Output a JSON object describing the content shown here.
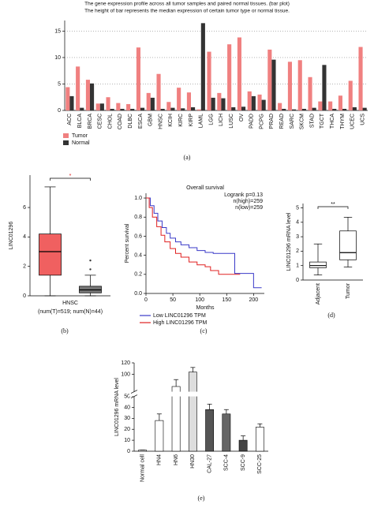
{
  "chart_data": [
    {
      "type": "bar",
      "title": "The gene expression profile across all tumor samples and paired normal tissues. (bar plot)",
      "subtitle": "The height of bar represents the median expression of certain tumor type or normal tissue.",
      "categories": [
        "ACC",
        "BLCA",
        "BRCA",
        "CESC",
        "CHOL",
        "COAD",
        "DLBC",
        "ESCA",
        "GBM",
        "HNSC",
        "KCIH",
        "KIRC",
        "KIRP",
        "LAML",
        "LGG",
        "LICH",
        "LUSC",
        "OV",
        "PADD",
        "PCPG",
        "PRAD",
        "READ",
        "SARC",
        "SKCM",
        "STAD",
        "TGCT",
        "THCA",
        "THYM",
        "UCEC",
        "UCS"
      ],
      "series": [
        {
          "name": "Tumor",
          "color": "#f08080",
          "values": [
            4.4,
            8.3,
            5.8,
            1.3,
            2.5,
            1.4,
            1.2,
            11.9,
            3.3,
            6.9,
            1.6,
            4.3,
            3.4,
            0.2,
            11.1,
            3.3,
            12.5,
            13.8,
            3.6,
            3.0,
            11.5,
            1.4,
            9.2,
            9.5,
            6.3,
            1.7,
            1.7,
            2.8,
            5.6,
            12.0
          ]
        },
        {
          "name": "Normal",
          "color": "#333333",
          "values": [
            2.7,
            0.5,
            5.1,
            1.3,
            0.3,
            0.3,
            0.3,
            0.5,
            2.4,
            0.3,
            0.5,
            0.4,
            0.6,
            16.5,
            2.4,
            2.3,
            0.6,
            0.7,
            2.7,
            2.0,
            9.6,
            0.3,
            0.2,
            0.3,
            0.5,
            8.6,
            0.3,
            0.3,
            0.6,
            0.5
          ]
        }
      ],
      "ylim": [
        0,
        17
      ],
      "yticks": [
        0,
        5,
        10,
        15
      ],
      "grid": true,
      "caption": "(a)"
    },
    {
      "type": "box",
      "categories": [
        "HNSC"
      ],
      "x_sublabel": "(num(T)=519; num(N)=44)",
      "ylabel": "LINC01296",
      "ylim": [
        0,
        8.2
      ],
      "yticks": [
        0,
        2,
        4,
        6
      ],
      "boxes": [
        {
          "color": "#f06060",
          "min": 0,
          "q1": 1.4,
          "median": 3.0,
          "q3": 4.2,
          "max": 7.4,
          "outliers": []
        },
        {
          "color": "#777777",
          "min": 0,
          "q1": 0.2,
          "median": 0.4,
          "q3": 0.65,
          "max": 1.4,
          "outliers": [
            1.8,
            2.4
          ]
        }
      ],
      "annotation": "*",
      "annotation_color": "#e02020",
      "caption": "(b)"
    },
    {
      "type": "step",
      "title": "Overall survival",
      "annotations": [
        "Logrank p=0.13",
        "n(high)=259",
        "n(low)=259"
      ],
      "xlabel": "Months",
      "ylabel": "Percent survival",
      "xlim": [
        0,
        220
      ],
      "ylim": [
        0,
        1.05
      ],
      "xticks": [
        0,
        50,
        100,
        150,
        200
      ],
      "yticks": [
        {
          "value": 0,
          "label": "0.0"
        },
        0.2,
        0.4,
        0.6,
        0.8,
        {
          "value": 1,
          "label": "1.0"
        }
      ],
      "series": [
        {
          "name": "Low LINC01296 TPM",
          "color": "#3a3ac8",
          "x": [
            0,
            8,
            15,
            22,
            30,
            38,
            45,
            55,
            65,
            80,
            95,
            110,
            125,
            140,
            160,
            165,
            190,
            200,
            215
          ],
          "values": [
            1,
            0.92,
            0.84,
            0.76,
            0.69,
            0.63,
            0.58,
            0.54,
            0.51,
            0.48,
            0.45,
            0.43,
            0.42,
            0.42,
            0.42,
            0.21,
            0.21,
            0.06,
            0.06
          ]
        },
        {
          "name": "High LINC01296 TPM",
          "color": "#e02020",
          "x": [
            0,
            6,
            12,
            20,
            28,
            35,
            45,
            55,
            65,
            80,
            95,
            110,
            120,
            135,
            150,
            165,
            175
          ],
          "values": [
            1,
            0.9,
            0.8,
            0.7,
            0.61,
            0.54,
            0.47,
            0.42,
            0.38,
            0.33,
            0.3,
            0.28,
            0.24,
            0.2,
            0.2,
            0.2,
            0.2
          ]
        }
      ],
      "caption": "(c)"
    },
    {
      "type": "box",
      "categories": [
        "Adjacent",
        "Tumor"
      ],
      "ylabel": "LINC01296 mRNA level",
      "ylim": [
        0,
        5.3
      ],
      "yticks": [
        0,
        1,
        2,
        3,
        4,
        5
      ],
      "boxes": [
        {
          "color": "#ffffff",
          "min": 0.35,
          "q1": 0.85,
          "median": 1.0,
          "q3": 1.25,
          "max": 2.5,
          "outliers": []
        },
        {
          "color": "#ffffff",
          "min": 0.9,
          "q1": 1.4,
          "median": 1.9,
          "q3": 3.4,
          "max": 4.35,
          "outliers": []
        }
      ],
      "annotation": "**",
      "annotation_color": "#000000",
      "caption": "(d)"
    },
    {
      "type": "bar",
      "categories": [
        "Normal cell",
        "HN4",
        "HN6",
        "HN30",
        "CAL-27",
        "SCC-4",
        "SCC-9",
        "SCC-25"
      ],
      "values": [
        1,
        28,
        79,
        104,
        38,
        34,
        10,
        22
      ],
      "errors": [
        0,
        6,
        12,
        8,
        5,
        4,
        4,
        3
      ],
      "colors": [
        "#ffffff",
        "#ffffff",
        "#ffffff",
        "#dddddd",
        "#555555",
        "#666666",
        "#444444",
        "#ffffff"
      ],
      "ylabel": "LINC01296 mRNA level",
      "ylims": [
        [
          0,
          50
        ],
        [
          70,
          120
        ]
      ],
      "yticks": [
        0,
        10,
        20,
        30,
        40,
        50,
        100,
        120
      ],
      "caption": "(e)"
    }
  ]
}
